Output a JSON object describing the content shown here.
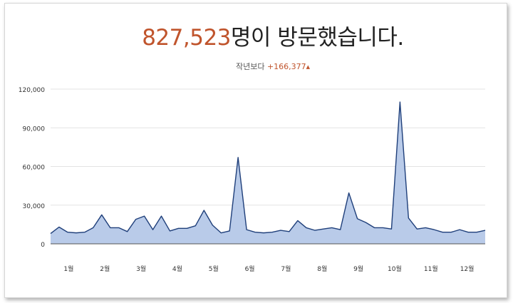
{
  "header": {
    "visitor_count": "827,523",
    "headline_suffix": "명이 방문했습니다.",
    "comparison_label": "작년보다",
    "comparison_delta": "+166,377",
    "comparison_arrow": "▲"
  },
  "colors": {
    "accent": "#c0542c",
    "line": "#1f3f7a",
    "fill": "#b9cbe9",
    "grid": "#e3e3e3",
    "baseline": "#555555",
    "text": "#222222"
  },
  "chart_data": {
    "type": "area",
    "title": "",
    "xlabel": "",
    "ylabel": "",
    "ylim": [
      0,
      120000
    ],
    "yticks": [
      0,
      30000,
      60000,
      90000,
      120000
    ],
    "ytick_labels": [
      "0",
      "30,000",
      "60,000",
      "90,000",
      "120,000"
    ],
    "month_labels": [
      "1월",
      "2월",
      "3월",
      "4월",
      "5월",
      "6월",
      "7월",
      "8월",
      "9월",
      "10월",
      "11월",
      "12월"
    ],
    "grid": true,
    "legend": "none",
    "series": [
      {
        "values": [
          8000,
          13000,
          9000,
          8500,
          9000,
          12500,
          22500,
          12500,
          12500,
          9500,
          19000,
          21500,
          11000,
          21500,
          10000,
          12000,
          12000,
          14000,
          26000,
          14500,
          8500,
          10000,
          67000,
          11000,
          9000,
          8500,
          9000,
          10500,
          9500,
          18000,
          12500,
          10500,
          11500,
          12500,
          11000,
          39500,
          19500,
          16500,
          12500,
          12500,
          11500,
          110000,
          20000,
          11500,
          12500,
          11000,
          9000,
          9000,
          11000,
          9000,
          9000,
          10500
        ]
      }
    ]
  }
}
